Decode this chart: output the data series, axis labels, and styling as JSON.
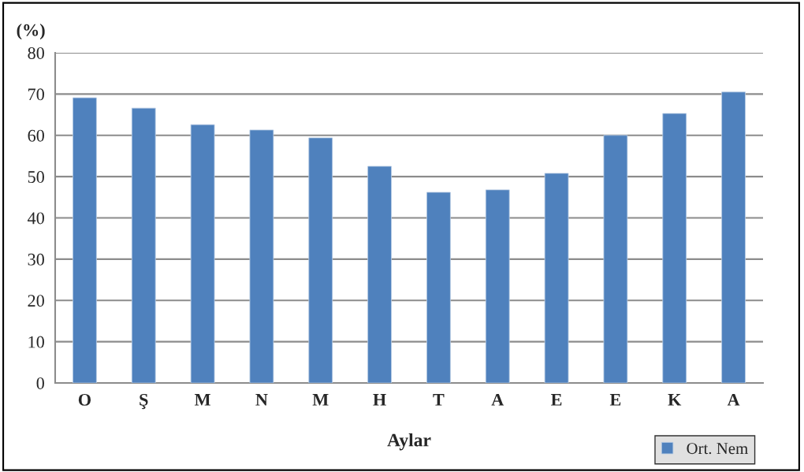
{
  "chart_data": {
    "type": "bar",
    "xlabel": "Aylar",
    "ylabel": "(%)",
    "categories": [
      "O",
      "Ş",
      "M",
      "N",
      "M",
      "H",
      "T",
      "A",
      "E",
      "E",
      "K",
      "A"
    ],
    "series": [
      {
        "name": "Ort. Nem",
        "color": "#4f81bd",
        "values": [
          69.1,
          66.6,
          62.6,
          61.3,
          59.4,
          52.5,
          46.2,
          46.8,
          50.8,
          60.0,
          65.3,
          70.5
        ]
      }
    ],
    "ylim": [
      0,
      80
    ],
    "yticks": [
      0,
      10,
      20,
      30,
      40,
      50,
      60,
      70,
      80
    ],
    "grid": "y",
    "legend": "bottom right"
  }
}
